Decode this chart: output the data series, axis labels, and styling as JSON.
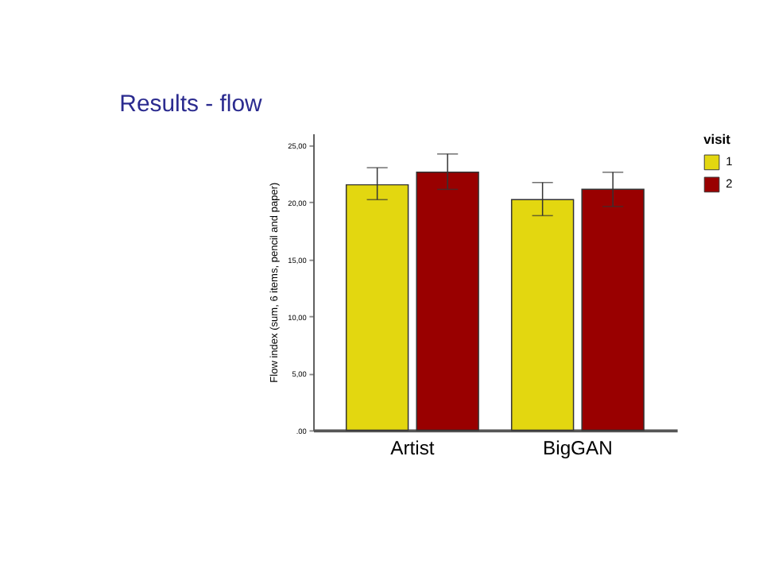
{
  "chart_data": {
    "type": "bar",
    "title": "Results - flow",
    "ylabel": "Flow index (sum, 6 items, pencil and paper)",
    "legend_title": "visit",
    "categories": [
      "Artist",
      "BigGAN"
    ],
    "series": [
      {
        "name": "1",
        "color": "#e3d710",
        "values": [
          21.5,
          20.2
        ],
        "errors": [
          [
            20.2,
            23.0
          ],
          [
            18.8,
            21.7
          ]
        ]
      },
      {
        "name": "2",
        "color": "#990000",
        "values": [
          22.6,
          21.1
        ],
        "errors": [
          [
            21.1,
            24.2
          ],
          [
            19.6,
            22.6
          ]
        ]
      }
    ],
    "ylim": [
      0,
      26
    ],
    "yticks": [
      {
        "value": 0,
        "label": ".00"
      },
      {
        "value": 5,
        "label": "5,00"
      },
      {
        "value": 10,
        "label": "10,00"
      },
      {
        "value": 15,
        "label": "15,00"
      },
      {
        "value": 20,
        "label": "20,00"
      },
      {
        "value": 25,
        "label": "25,00"
      }
    ],
    "grid": false,
    "legend": "top right"
  }
}
